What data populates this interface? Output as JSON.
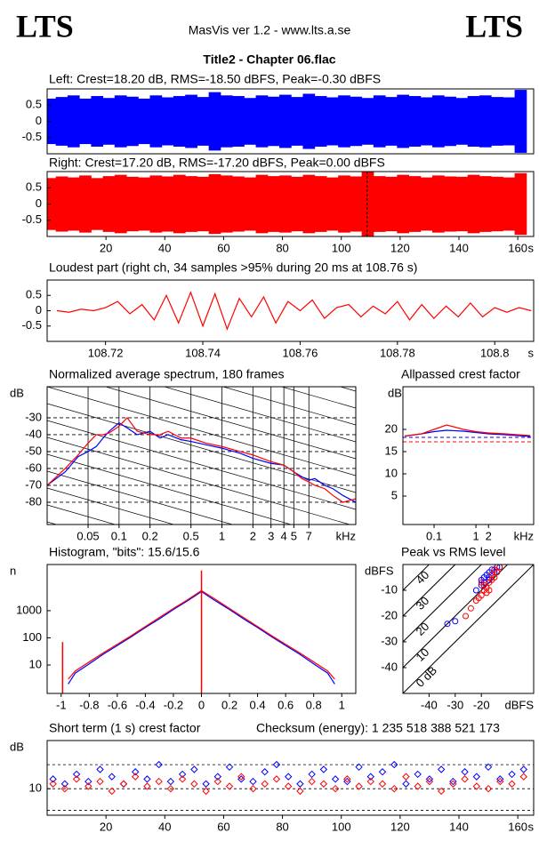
{
  "header": {
    "logo_left": "LTS",
    "app": "MasVis ver 1.2 - www.lts.a.se",
    "logo_right": "LTS",
    "file": "Title2 - Chapter 06.flac"
  },
  "chart_data": [
    {
      "type": "waveform",
      "title": "Left: Crest=18.20 dB, RMS=-18.50 dBFS, Peak=-0.30 dBFS",
      "xlim": [
        0,
        165.4
      ],
      "ylim": [
        -1,
        1
      ],
      "yticks": [
        0.5,
        0,
        -0.5
      ],
      "color": "#0000ff",
      "x": [
        1,
        5,
        9,
        13,
        17,
        21,
        25,
        29,
        33,
        37,
        41,
        45,
        49,
        53,
        57,
        61,
        65,
        69,
        73,
        77,
        81,
        85,
        89,
        93,
        97,
        101,
        105,
        109,
        113,
        117,
        121,
        125,
        129,
        133,
        137,
        141,
        145,
        149,
        153,
        157,
        161
      ],
      "values": [
        0.7,
        0.75,
        0.8,
        0.7,
        0.78,
        0.72,
        0.8,
        0.76,
        0.7,
        0.8,
        0.74,
        0.78,
        0.82,
        0.75,
        0.9,
        0.8,
        0.78,
        0.72,
        0.8,
        0.76,
        0.82,
        0.75,
        0.85,
        0.78,
        0.74,
        0.8,
        0.76,
        0.72,
        0.8,
        0.75,
        0.82,
        0.78,
        0.74,
        0.8,
        0.76,
        0.72,
        0.78,
        0.8,
        0.75,
        0.74,
        0.97
      ]
    },
    {
      "type": "waveform",
      "title": "Right: Crest=17.20 dB, RMS=-17.20 dBFS, Peak=0.00 dBFS",
      "xlim": [
        0,
        165.4
      ],
      "ylim": [
        -1,
        1
      ],
      "yticks": [
        0.5,
        0,
        -0.5
      ],
      "xticks": [
        20,
        40,
        60,
        80,
        100,
        120,
        140,
        160
      ],
      "x_unit": "s",
      "color": "#ff0000",
      "marker_x": 108.76,
      "x": [
        1,
        5,
        9,
        13,
        17,
        21,
        25,
        29,
        33,
        37,
        41,
        45,
        49,
        53,
        57,
        61,
        65,
        69,
        73,
        77,
        81,
        85,
        89,
        93,
        97,
        101,
        105,
        109,
        113,
        117,
        121,
        125,
        129,
        133,
        137,
        141,
        145,
        149,
        153,
        157,
        161
      ],
      "values": [
        0.8,
        0.85,
        0.82,
        0.88,
        0.8,
        0.86,
        0.9,
        0.84,
        0.82,
        0.88,
        0.85,
        0.9,
        0.86,
        0.84,
        0.92,
        0.88,
        0.85,
        0.82,
        0.9,
        0.86,
        0.88,
        0.84,
        0.9,
        0.86,
        0.82,
        0.88,
        0.85,
        1.0,
        0.86,
        0.84,
        0.9,
        0.86,
        0.82,
        0.88,
        0.85,
        0.84,
        0.9,
        0.86,
        0.84,
        0.82,
        0.95
      ]
    },
    {
      "type": "line",
      "title": "Loudest part (right ch, 34 samples >95% during 20 ms at 108.76 s)",
      "xlim": [
        108.708,
        108.808
      ],
      "ylim": [
        -1,
        1
      ],
      "yticks": [
        0.5,
        0,
        -0.5
      ],
      "xticks": [
        108.72,
        108.74,
        108.76,
        108.78,
        108.8
      ],
      "x_unit": "s",
      "x": [
        108.71,
        108.7125,
        108.715,
        108.7175,
        108.72,
        108.7225,
        108.725,
        108.7275,
        108.73,
        108.7325,
        108.735,
        108.7375,
        108.74,
        108.7425,
        108.745,
        108.7475,
        108.75,
        108.7525,
        108.755,
        108.7575,
        108.76,
        108.7625,
        108.765,
        108.7675,
        108.77,
        108.7725,
        108.775,
        108.7775,
        108.78,
        108.7825,
        108.785,
        108.7875,
        108.79,
        108.7925,
        108.795,
        108.7975,
        108.8,
        108.8025,
        108.805,
        108.8075
      ],
      "series": [
        {
          "color": "#ff0000",
          "values": [
            0.0,
            -0.05,
            0.05,
            0.0,
            0.1,
            0.3,
            -0.1,
            0.2,
            -0.3,
            0.5,
            -0.4,
            0.6,
            -0.5,
            0.55,
            -0.6,
            0.4,
            -0.2,
            0.45,
            -0.4,
            0.3,
            0.0,
            0.35,
            -0.25,
            0.1,
            0.2,
            -0.2,
            0.15,
            -0.1,
            0.3,
            -0.3,
            0.2,
            -0.25,
            0.15,
            -0.2,
            0.25,
            -0.2,
            0.1,
            -0.05,
            0.1,
            0.0
          ]
        }
      ]
    },
    {
      "type": "line",
      "title": "Normalized average spectrum, 180 frames",
      "xscale": "log",
      "grid": true,
      "xlim": [
        0.02,
        20
      ],
      "ylim": [
        -93.2,
        -11.6
      ],
      "yticks": [
        -30,
        -40,
        -50,
        -60,
        -70,
        -80
      ],
      "xticks": [
        0.05,
        0.1,
        0.2,
        0.5,
        1,
        2,
        3,
        4,
        5,
        7
      ],
      "x_unit": "kHz",
      "y_unit": "dB",
      "x": [
        0.02,
        0.03,
        0.04,
        0.05,
        0.06,
        0.07,
        0.08,
        0.1,
        0.12,
        0.15,
        0.2,
        0.25,
        0.3,
        0.4,
        0.5,
        0.7,
        1,
        1.5,
        2,
        3,
        4,
        5,
        6,
        7,
        8,
        10,
        12,
        15,
        20
      ],
      "series": [
        {
          "color": "#0000ff",
          "values": [
            -70,
            -62,
            -53,
            -50,
            -47,
            -42,
            -38,
            -33,
            -36,
            -40,
            -38,
            -42,
            -40,
            -43,
            -44,
            -46,
            -48,
            -51,
            -54,
            -57,
            -58,
            -62,
            -65,
            -67,
            -66,
            -70,
            -72,
            -76,
            -80
          ]
        },
        {
          "color": "#ff0000",
          "values": [
            -70,
            -60,
            -52,
            -45,
            -40,
            -40,
            -39,
            -35,
            -30,
            -38,
            -40,
            -40,
            -38,
            -42,
            -42,
            -45,
            -47,
            -50,
            -52,
            -56,
            -58,
            -62,
            -66,
            -68,
            -70,
            -72,
            -76,
            -80,
            -78
          ]
        }
      ]
    },
    {
      "type": "line",
      "title": "Allpassed crest factor",
      "xscale": "log",
      "xlim": [
        0.018,
        24
      ],
      "ylim": [
        -1.4,
        29.6
      ],
      "yticks": [
        20,
        15,
        10,
        5
      ],
      "xticks": [
        0.1,
        1,
        2
      ],
      "x_unit": "kHz",
      "y_unit": "dB",
      "x": [
        0.02,
        0.05,
        0.1,
        0.2,
        0.5,
        1,
        2,
        5,
        10,
        20
      ],
      "series": [
        {
          "color": "#0000ff",
          "values": [
            18.5,
            19,
            19.5,
            19.8,
            19.6,
            19.3,
            19,
            18.8,
            18.6,
            18.4
          ]
        },
        {
          "color": "#ff0000",
          "values": [
            18.5,
            19,
            20,
            21,
            20,
            19.5,
            19.2,
            19,
            18.8,
            18.6
          ]
        }
      ],
      "hlines": [
        {
          "value": 18.2,
          "color": "#0000ff"
        },
        {
          "value": 17.2,
          "color": "#ff0000"
        }
      ]
    },
    {
      "type": "line",
      "title": "Histogram, \"bits\": 15.6/15.6",
      "yscale": "log",
      "xlim": [
        -1.1,
        1.1
      ],
      "ylim": [
        0.9,
        50000
      ],
      "yticks": [
        1000,
        100,
        10
      ],
      "xticks": [
        -1,
        -0.8,
        -0.6,
        -0.4,
        -0.2,
        0,
        0.2,
        0.4,
        0.6,
        0.8,
        1
      ],
      "y_unit": "n",
      "x": [
        -0.95,
        -0.9,
        -0.8,
        -0.7,
        -0.6,
        -0.5,
        -0.4,
        -0.3,
        -0.2,
        -0.1,
        0,
        0.1,
        0.2,
        0.3,
        0.4,
        0.5,
        0.6,
        0.7,
        0.8,
        0.9,
        0.95
      ],
      "series": [
        {
          "color": "#0000ff",
          "values": [
            2,
            5,
            11,
            25,
            52,
            110,
            240,
            500,
            1100,
            2300,
            5000,
            2300,
            1100,
            500,
            240,
            110,
            52,
            25,
            11,
            5,
            2
          ]
        },
        {
          "color": "#ff0000",
          "values": [
            3,
            6,
            13,
            28,
            58,
            120,
            260,
            560,
            1200,
            2500,
            5500,
            2600,
            1200,
            560,
            260,
            120,
            58,
            28,
            13,
            6,
            3
          ]
        }
      ],
      "spikes": {
        "color": "#ff0000",
        "x": [
          -0.99,
          0
        ],
        "values": [
          70,
          30000
        ]
      }
    },
    {
      "type": "scatter",
      "title": "Peak vs RMS level",
      "marker": "circle",
      "xlim": [
        -50,
        0
      ],
      "ylim": [
        -50,
        0
      ],
      "yticks": [
        -10,
        -20,
        -30,
        -40
      ],
      "xticks": [
        -40,
        -30,
        -20
      ],
      "x_unit": "dBFS",
      "y_unit": "dBFS",
      "diagonals": [
        {
          "value": 0,
          "label": "0 dB"
        },
        10,
        20,
        30,
        40
      ],
      "series": [
        {
          "color": "#0000ff",
          "x": [
            -22,
            -20,
            -19,
            -18,
            -17,
            -16,
            -15,
            -14,
            -19,
            -17,
            -16,
            -18,
            -15,
            -20,
            -13,
            -17,
            -33,
            -30
          ],
          "values": [
            -10,
            -6,
            -5,
            -4,
            -3,
            -2,
            -2,
            -1,
            -7,
            -6,
            -4,
            -9,
            -3,
            -8,
            -1,
            -5,
            -23,
            -22
          ]
        },
        {
          "color": "#ff0000",
          "x": [
            -24,
            -22,
            -20,
            -19,
            -18,
            -17,
            -16,
            -15,
            -14,
            -19,
            -17,
            -16,
            -21,
            -18,
            -15,
            -26,
            -13,
            -20
          ],
          "values": [
            -17,
            -14,
            -12,
            -10,
            -9,
            -7,
            -6,
            -5,
            -3,
            -8,
            -10,
            -4,
            -13,
            -11,
            -2,
            -20,
            -1,
            -7
          ]
        }
      ]
    },
    {
      "type": "scatter",
      "title": "Short term (1 s) crest factor",
      "annotation": "Checksum (energy):  1 235 518 388 521 173",
      "marker": "diamond",
      "xlim": [
        0,
        165.4
      ],
      "ylim": [
        -1,
        30
      ],
      "yticks": [
        10
      ],
      "xticks": [
        20,
        40,
        60,
        80,
        100,
        120,
        140,
        160
      ],
      "x_unit": "s",
      "y_unit": "dB",
      "dashed_lines": [
        20,
        10,
        1
      ],
      "x": [
        2,
        6,
        10,
        14,
        18,
        22,
        26,
        30,
        34,
        38,
        42,
        46,
        50,
        54,
        58,
        62,
        66,
        70,
        74,
        78,
        82,
        86,
        90,
        94,
        98,
        102,
        106,
        110,
        114,
        118,
        122,
        126,
        130,
        134,
        138,
        142,
        146,
        150,
        154,
        158,
        162
      ],
      "series": [
        {
          "color": "#0000ff",
          "values": [
            14,
            12,
            16,
            13,
            18,
            15,
            12,
            17,
            14,
            20,
            13,
            16,
            18,
            12,
            15,
            19,
            14,
            13,
            17,
            20,
            15,
            12,
            16,
            18,
            14,
            13,
            19,
            15,
            17,
            20,
            12,
            16,
            14,
            18,
            13,
            17,
            15,
            19,
            14,
            16,
            18
          ]
        },
        {
          "color": "#ff0000",
          "values": [
            12,
            10,
            14,
            11,
            13,
            9,
            12,
            15,
            11,
            13,
            10,
            14,
            12,
            9,
            13,
            11,
            15,
            10,
            12,
            14,
            11,
            9,
            13,
            12,
            10,
            14,
            11,
            13,
            12,
            10,
            15,
            11,
            13,
            9,
            12,
            14,
            11,
            10,
            13,
            12,
            15
          ]
        }
      ]
    }
  ]
}
